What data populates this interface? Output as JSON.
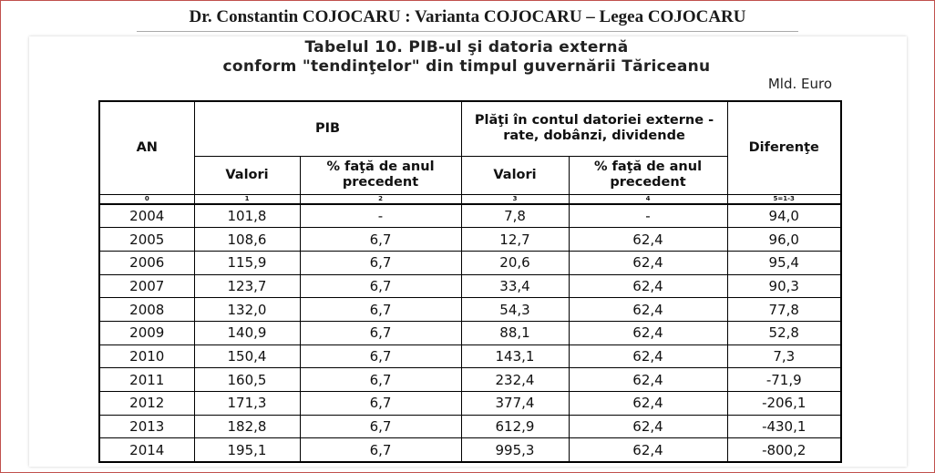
{
  "header": {
    "title": "Dr. Constantin COJOCARU : Varianta COJOCARU – Legea COJOCARU"
  },
  "table": {
    "title": [
      "Tabelul 10. PIB-ul şi datoria externă",
      "conform \"tendinţelor\" din timpul guvernării Tăriceanu"
    ],
    "unit": "Mld. Euro",
    "headers": {
      "an": "AN",
      "pib": "PIB",
      "plati": "Plăţi în contul datoriei externe - rate, dobânzi, dividende",
      "diferente": "Diferenţe",
      "sub": [
        "Valori",
        "% faţă de anul precedent",
        "Valori",
        "% faţă de anul precedent"
      ]
    },
    "column_numbers": [
      "0",
      "1",
      "2",
      "3",
      "4",
      "5=1-3"
    ],
    "rows": [
      [
        "2004",
        "101,8",
        "-",
        "7,8",
        "-",
        "94,0"
      ],
      [
        "2005",
        "108,6",
        "6,7",
        "12,7",
        "62,4",
        "96,0"
      ],
      [
        "2006",
        "115,9",
        "6,7",
        "20,6",
        "62,4",
        "95,4"
      ],
      [
        "2007",
        "123,7",
        "6,7",
        "33,4",
        "62,4",
        "90,3"
      ],
      [
        "2008",
        "132,0",
        "6,7",
        "54,3",
        "62,4",
        "77,8"
      ],
      [
        "2009",
        "140,9",
        "6,7",
        "88,1",
        "62,4",
        "52,8"
      ],
      [
        "2010",
        "150,4",
        "6,7",
        "143,1",
        "62,4",
        "7,3"
      ],
      [
        "2011",
        "160,5",
        "6,7",
        "232,4",
        "62,4",
        "-71,9"
      ],
      [
        "2012",
        "171,3",
        "6,7",
        "377,4",
        "62,4",
        "-206,1"
      ],
      [
        "2013",
        "182,8",
        "6,7",
        "612,9",
        "62,4",
        "-430,1"
      ],
      [
        "2014",
        "195,1",
        "6,7",
        "995,3",
        "62,4",
        "-800,2"
      ]
    ]
  }
}
